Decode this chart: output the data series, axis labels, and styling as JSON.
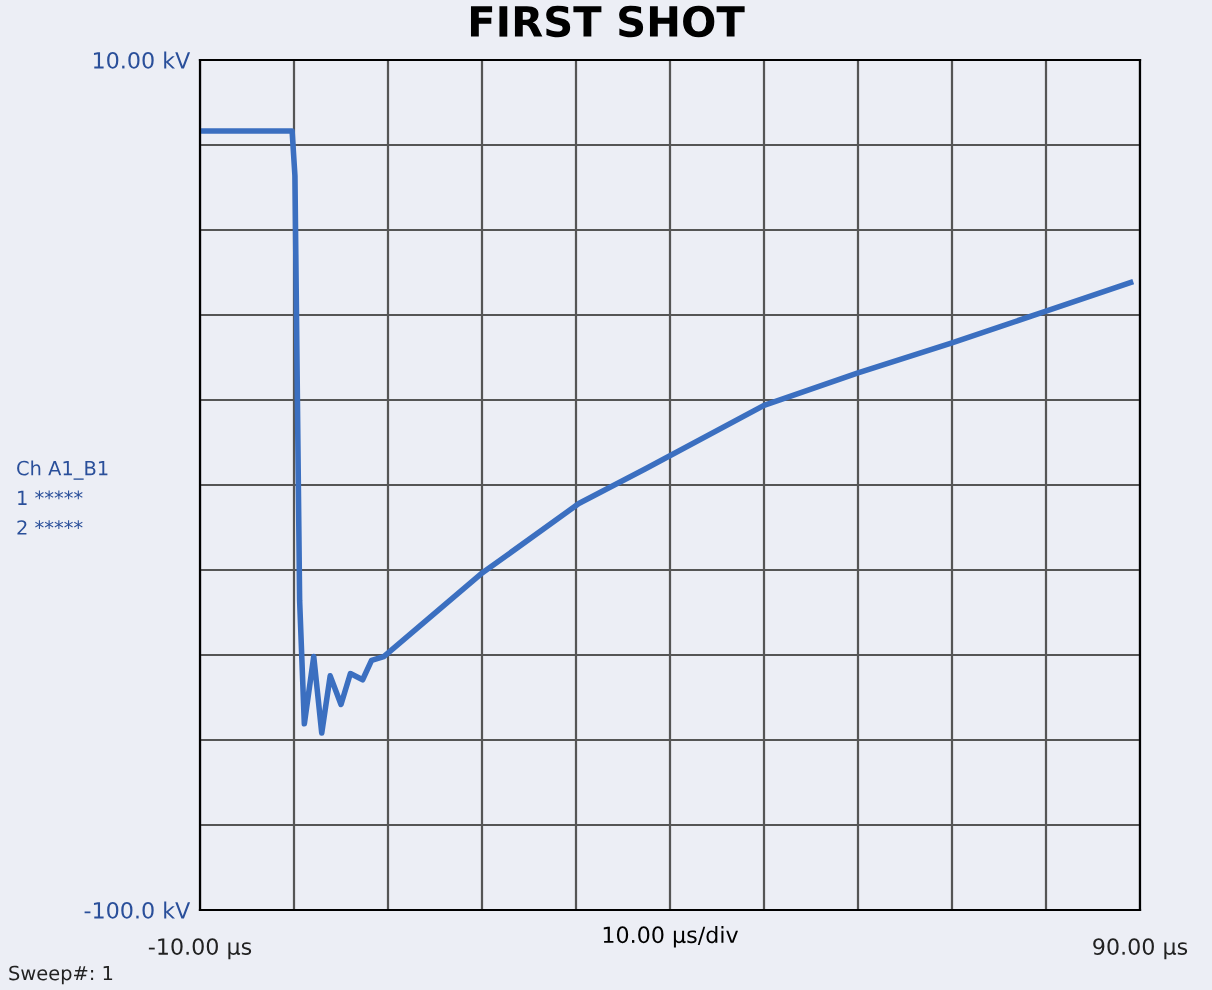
{
  "chart_data": {
    "type": "line",
    "title": "FIRST SHOT",
    "xlabel": "10.00 µs/div",
    "annotations": [
      "Ch A1_B1",
      "1 *****",
      "2 *****",
      "Sweep#: 1"
    ],
    "series": [
      {
        "color": "#3b6fc0",
        "x": [
          -10,
          -0.2,
          0.1,
          0.6,
          1.1,
          2.1,
          2.95,
          3.85,
          5.0,
          6.0,
          7.3,
          8.25,
          9.55,
          19.9,
          30.3,
          37.4,
          50,
          60,
          70,
          80,
          89
        ],
        "values": [
          0.8,
          0.8,
          -5,
          -60,
          -75.9,
          -67.2,
          -77.1,
          -69.7,
          -73.4,
          -69.4,
          -70.2,
          -67.7,
          -67.2,
          -56.5,
          -47.4,
          -42.9,
          -34.7,
          -30.5,
          -26.6,
          -22.5,
          -18.8
        ]
      }
    ],
    "xlim": [
      -10,
      90
    ],
    "xticks": [
      {
        "value": -10,
        "label": "-10.00 µs"
      },
      {
        "value": 0,
        "label": null
      },
      {
        "value": 10,
        "label": null
      },
      {
        "value": 20,
        "label": null
      },
      {
        "value": 30,
        "label": null
      },
      {
        "value": 40,
        "label": null
      },
      {
        "value": 50,
        "label": null
      },
      {
        "value": 60,
        "label": null
      },
      {
        "value": 70,
        "label": null
      },
      {
        "value": 80,
        "label": null
      },
      {
        "value": 90,
        "label": "90.00 µs"
      }
    ],
    "ylim": [
      -100,
      10
    ],
    "yticks": [
      {
        "value": -100,
        "label": "-100.0 kV"
      },
      {
        "value": -89,
        "label": null
      },
      {
        "value": -78,
        "label": null
      },
      {
        "value": -67,
        "label": null
      },
      {
        "value": -56,
        "label": null
      },
      {
        "value": -45,
        "label": null
      },
      {
        "value": -34,
        "label": null
      },
      {
        "value": -23,
        "label": null
      },
      {
        "value": -12,
        "label": null
      },
      {
        "value": -1,
        "label": null
      },
      {
        "value": 10,
        "label": "10.00 kV"
      }
    ],
    "grid": true,
    "legend": false,
    "line_style": "solid",
    "marker": "none"
  }
}
